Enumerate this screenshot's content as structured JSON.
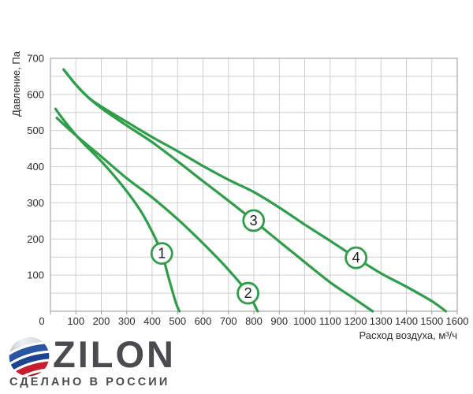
{
  "chart_data": {
    "type": "line",
    "title": "",
    "xlabel": "Расход воздуха, м³/ч",
    "ylabel": "Давление, Па",
    "xlim": [
      0,
      1600
    ],
    "ylim": [
      0,
      700
    ],
    "x_ticks": [
      0,
      100,
      200,
      300,
      400,
      500,
      600,
      700,
      800,
      900,
      1000,
      1100,
      1200,
      1300,
      1400,
      1500,
      1600
    ],
    "y_ticks": [
      100,
      200,
      300,
      400,
      500,
      600,
      700
    ],
    "y_minor_grid_step": 50,
    "x_grid_step": 100,
    "grid": true,
    "legend_position": "numbered circles on curves",
    "curve_color": "#2f9e48",
    "grid_color": "#cfcfcf",
    "border_color": "#b3b3b3",
    "tick_label_color": "#2b2b2b",
    "marker_number_color": "#1e1e1e",
    "series": [
      {
        "name": "1",
        "marker": {
          "flow": 438,
          "pressure": 160
        },
        "points": [
          [
            20,
            560
          ],
          [
            60,
            522
          ],
          [
            120,
            472
          ],
          [
            200,
            415
          ],
          [
            280,
            350
          ],
          [
            350,
            283
          ],
          [
            400,
            220
          ],
          [
            438,
            160
          ],
          [
            460,
            105
          ],
          [
            480,
            55
          ],
          [
            495,
            20
          ],
          [
            507,
            0
          ]
        ]
      },
      {
        "name": "2",
        "marker": {
          "flow": 777,
          "pressure": 50
        },
        "points": [
          [
            25,
            535
          ],
          [
            100,
            487
          ],
          [
            200,
            428
          ],
          [
            300,
            368
          ],
          [
            400,
            315
          ],
          [
            500,
            255
          ],
          [
            600,
            188
          ],
          [
            700,
            115
          ],
          [
            777,
            50
          ],
          [
            815,
            0
          ]
        ]
      },
      {
        "name": "3",
        "marker": {
          "flow": 799,
          "pressure": 251
        },
        "points": [
          [
            52,
            669
          ],
          [
            100,
            627
          ],
          [
            150,
            591
          ],
          [
            204,
            560
          ],
          [
            300,
            514
          ],
          [
            400,
            468
          ],
          [
            500,
            415
          ],
          [
            600,
            360
          ],
          [
            700,
            306
          ],
          [
            799,
            251
          ],
          [
            900,
            193
          ],
          [
            1000,
            136
          ],
          [
            1100,
            80
          ],
          [
            1180,
            42
          ],
          [
            1267,
            0
          ]
        ]
      },
      {
        "name": "4",
        "marker": {
          "flow": 1202,
          "pressure": 148
        },
        "points": [
          [
            52,
            669
          ],
          [
            100,
            627
          ],
          [
            150,
            591
          ],
          [
            210,
            562
          ],
          [
            300,
            524
          ],
          [
            400,
            482
          ],
          [
            500,
            443
          ],
          [
            600,
            402
          ],
          [
            700,
            364
          ],
          [
            800,
            330
          ],
          [
            900,
            287
          ],
          [
            1000,
            240
          ],
          [
            1100,
            195
          ],
          [
            1202,
            148
          ],
          [
            1300,
            105
          ],
          [
            1400,
            68
          ],
          [
            1500,
            28
          ],
          [
            1555,
            0
          ]
        ]
      }
    ]
  },
  "logo": {
    "brand": "ZILON",
    "tagline": "СДЕЛАНО В РОССИИ",
    "text_color": "#4a4a4f",
    "globe_colors": {
      "silver": "#b9bec6",
      "blue": "#2a55a2",
      "dark_blue": "#1c4391",
      "red": "#c41e2f",
      "dark_red": "#9e1b28"
    }
  }
}
